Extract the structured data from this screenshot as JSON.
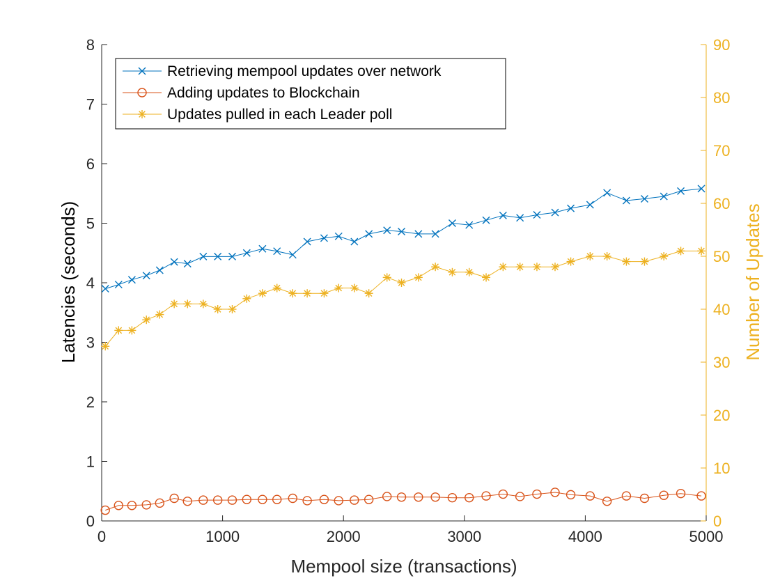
{
  "chart_data": {
    "type": "line",
    "title": "",
    "xlabel": "Mempool size (transactions)",
    "ylabel": "Latencies (seconds)",
    "y2label": "Number of Updates",
    "xlim": [
      0,
      5000
    ],
    "ylim": [
      0,
      8
    ],
    "y2lim": [
      0,
      90
    ],
    "xticks": [
      0,
      1000,
      2000,
      3000,
      4000,
      5000
    ],
    "yticks": [
      0,
      1,
      2,
      3,
      4,
      5,
      6,
      7,
      8
    ],
    "y2ticks": [
      0,
      10,
      20,
      30,
      40,
      50,
      60,
      70,
      80,
      90
    ],
    "legend_position": "top-left",
    "grid": false,
    "x": [
      30,
      140,
      250,
      370,
      480,
      600,
      710,
      840,
      960,
      1080,
      1200,
      1330,
      1450,
      1580,
      1700,
      1840,
      1960,
      2090,
      2210,
      2360,
      2480,
      2620,
      2760,
      2900,
      3040,
      3180,
      3320,
      3460,
      3600,
      3750,
      3880,
      4040,
      4180,
      4340,
      4490,
      4650,
      4790,
      4960
    ],
    "series": [
      {
        "name": "Retrieving mempool updates over network",
        "axis": "left",
        "marker": "x",
        "color": "#0072BD",
        "values": [
          3.9,
          3.97,
          4.05,
          4.12,
          4.21,
          4.35,
          4.32,
          4.44,
          4.44,
          4.44,
          4.5,
          4.57,
          4.53,
          4.47,
          4.69,
          4.75,
          4.78,
          4.69,
          4.82,
          4.88,
          4.86,
          4.82,
          4.82,
          5.0,
          4.97,
          5.05,
          5.13,
          5.09,
          5.14,
          5.18,
          5.25,
          5.31,
          5.51,
          5.38,
          5.41,
          5.45,
          5.54,
          5.58
        ]
      },
      {
        "name": "Adding updates to Blockchain",
        "axis": "left",
        "marker": "o",
        "color": "#D95319",
        "values": [
          0.18,
          0.26,
          0.26,
          0.27,
          0.3,
          0.38,
          0.33,
          0.35,
          0.35,
          0.35,
          0.36,
          0.36,
          0.36,
          0.38,
          0.34,
          0.36,
          0.34,
          0.35,
          0.36,
          0.41,
          0.4,
          0.4,
          0.4,
          0.39,
          0.39,
          0.42,
          0.45,
          0.41,
          0.45,
          0.48,
          0.44,
          0.42,
          0.33,
          0.42,
          0.38,
          0.43,
          0.46,
          0.42
        ]
      },
      {
        "name": "Updates pulled in each Leader poll",
        "axis": "right",
        "marker": "*",
        "color": "#EDB120",
        "values": [
          33,
          36,
          36,
          38,
          39,
          41,
          41,
          41,
          40,
          40,
          42,
          43,
          44,
          43,
          43,
          43,
          44,
          44,
          43,
          46,
          45,
          46,
          48,
          47,
          47,
          46,
          48,
          48,
          48,
          48,
          49,
          50,
          50,
          49,
          49,
          50,
          51,
          51
        ]
      }
    ]
  }
}
